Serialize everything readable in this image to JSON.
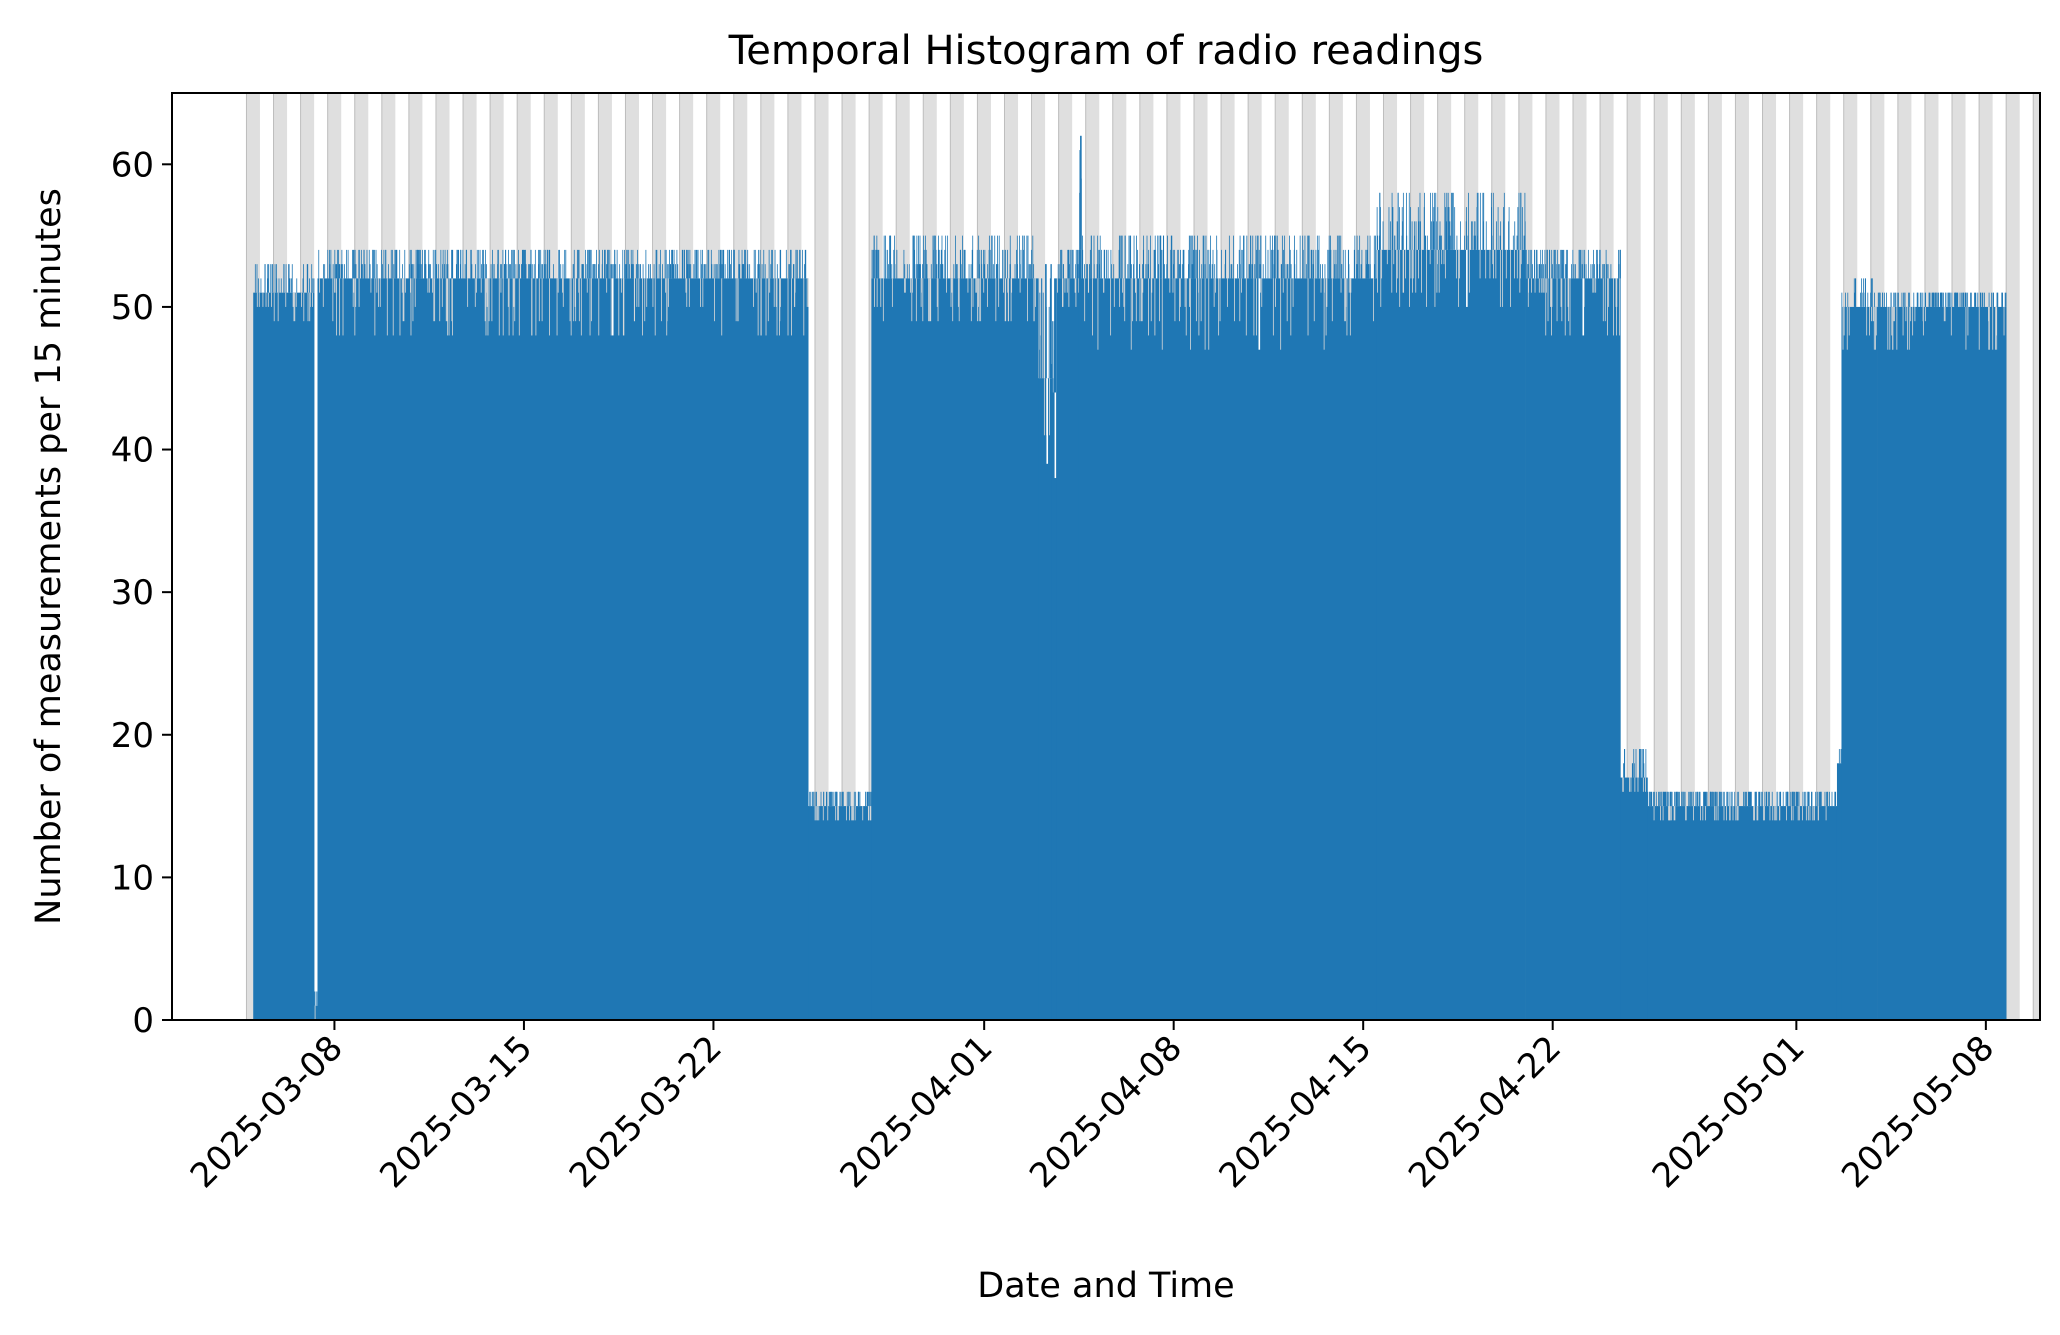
{
  "chart_data": {
    "type": "bar",
    "title": "Temporal Histogram of radio readings",
    "xlabel": "Date and Time",
    "ylabel": "Number of measurements per 15 minutes",
    "x_axis_type": "date",
    "xlim": [
      "2025-03-02T00:00",
      "2025-05-10T00:00"
    ],
    "ylim": [
      0,
      65
    ],
    "y_ticks": [
      0,
      10,
      20,
      30,
      40,
      50,
      60
    ],
    "x_ticks": [
      "2025-03-08",
      "2025-03-15",
      "2025-03-22",
      "2025-04-01",
      "2025-04-08",
      "2025-04-15",
      "2025-04-22",
      "2025-05-01",
      "2025-05-08"
    ],
    "x_tick_rotation": 45,
    "grid": false,
    "legend": "none",
    "bin_width": "15 minutes",
    "colors": {
      "bars": "#1f77b4",
      "night_shading": "#d9d9d9",
      "axis": "#000000"
    },
    "night_shading": {
      "description_visible": "grey vertical bands each night",
      "first_day": "2025-03-04",
      "last_day": "2025-05-09",
      "start_hour": 18,
      "end_hour": 6
    },
    "series": [
      {
        "segments": [
          {
            "start": "2025-03-05T00:00",
            "end": "2025-03-07T06:00",
            "base": 51,
            "low": 49,
            "high": 53
          },
          {
            "start": "2025-03-07T06:00",
            "end": "2025-03-07T09:00",
            "base": 1,
            "low": 0,
            "high": 1
          },
          {
            "start": "2025-03-07T09:00",
            "end": "2025-03-25T12:00",
            "base": 52,
            "low": 48,
            "high": 54
          },
          {
            "start": "2025-03-25T12:00",
            "end": "2025-03-27T20:00",
            "base": 15,
            "low": 14,
            "high": 16
          },
          {
            "start": "2025-03-27T20:00",
            "end": "2025-04-03T00:00",
            "base": 52,
            "low": 49,
            "high": 55
          },
          {
            "start": "2025-04-03T00:00",
            "end": "2025-04-03T12:00",
            "base": 45,
            "low": 39,
            "high": 53
          },
          {
            "start": "2025-04-03T12:00",
            "end": "2025-04-03T16:00",
            "base": 44,
            "low": 38,
            "high": 52
          },
          {
            "start": "2025-04-03T16:00",
            "end": "2025-04-04T12:00",
            "base": 52,
            "low": 50,
            "high": 54
          },
          {
            "start": "2025-04-04T12:00",
            "end": "2025-04-04T14:00",
            "base": 54,
            "low": 52,
            "high": 62
          },
          {
            "start": "2025-04-04T14:00",
            "end": "2025-04-15T12:00",
            "base": 52,
            "low": 47,
            "high": 55
          },
          {
            "start": "2025-04-15T12:00",
            "end": "2025-04-21T00:00",
            "base": 54,
            "low": 50,
            "high": 58
          },
          {
            "start": "2025-04-21T00:00",
            "end": "2025-04-24T12:00",
            "base": 52,
            "low": 48,
            "high": 54
          },
          {
            "start": "2025-04-24T12:00",
            "end": "2025-04-25T12:00",
            "base": 17,
            "low": 16,
            "high": 19
          },
          {
            "start": "2025-04-25T12:00",
            "end": "2025-05-02T12:00",
            "base": 15,
            "low": 14,
            "high": 16
          },
          {
            "start": "2025-05-02T12:00",
            "end": "2025-05-02T16:00",
            "base": 18,
            "low": 17,
            "high": 19
          },
          {
            "start": "2025-05-02T16:00",
            "end": "2025-05-04T00:00",
            "base": 50,
            "low": 47,
            "high": 52
          },
          {
            "start": "2025-05-04T00:00",
            "end": "2025-05-08T18:00",
            "base": 50,
            "low": 47,
            "high": 51
          }
        ]
      }
    ]
  }
}
